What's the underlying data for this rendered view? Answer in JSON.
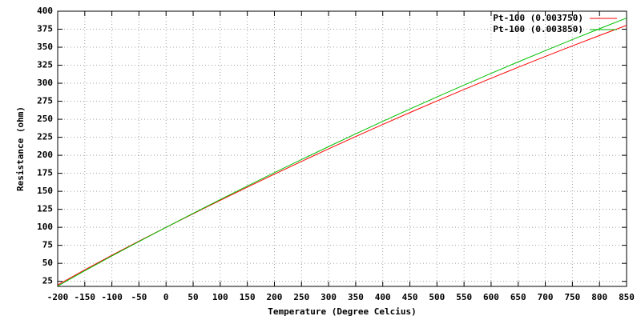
{
  "chart_data": {
    "type": "line",
    "x_label": "Temperature (Degree Celcius)",
    "y_label": "Resistance (ohm)",
    "x": [
      -200,
      -150,
      -100,
      -50,
      0,
      50,
      100,
      150,
      200,
      250,
      300,
      350,
      400,
      450,
      500,
      550,
      600,
      650,
      700,
      750,
      800,
      850
    ],
    "series": [
      {
        "name": "Pt-100 (0.003750)",
        "color": "#ff0000",
        "values": [
          19.95,
          40.99,
          61.18,
          80.79,
          100,
          118.9,
          137.5,
          155.8,
          173.79,
          191.49,
          208.88,
          225.98,
          242.77,
          259.26,
          275.45,
          291.34,
          306.93,
          322.22,
          337.2,
          351.89,
          366.27,
          380.36
        ]
      },
      {
        "name": "Pt-100 (0.003850)",
        "color": "#00c000",
        "values": [
          18.52,
          39.72,
          60.26,
          80.31,
          100,
          119.4,
          138.51,
          157.33,
          175.86,
          194.1,
          212.05,
          229.72,
          247.09,
          264.18,
          280.98,
          297.49,
          313.71,
          329.64,
          345.28,
          360.64,
          375.7,
          390.48
        ]
      }
    ],
    "xlim": [
      -200,
      850
    ],
    "xticks": [
      -200,
      -150,
      -100,
      -50,
      0,
      50,
      100,
      150,
      200,
      250,
      300,
      350,
      400,
      450,
      500,
      550,
      600,
      650,
      700,
      750,
      800,
      850
    ],
    "ylim": [
      18,
      400
    ],
    "yticks": [
      25,
      50,
      75,
      100,
      125,
      150,
      175,
      200,
      225,
      250,
      275,
      300,
      325,
      350,
      375,
      400
    ],
    "grid": true,
    "legend": "top-right"
  }
}
